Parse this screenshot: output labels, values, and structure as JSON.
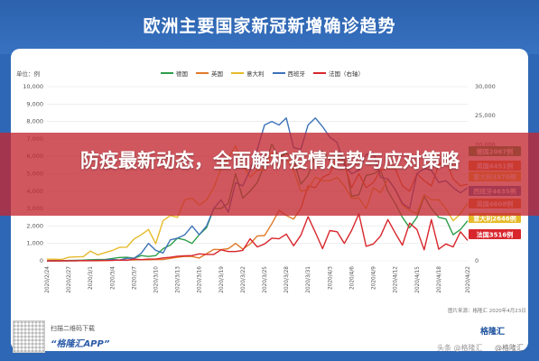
{
  "page_title": "欧洲主要国家新冠新增确诊趋势",
  "banner": "防疫最新动态，全面解析疫情走势与应对策略",
  "legend_note": "单位：例",
  "footer": {
    "app_line1": "扫描二维码下载",
    "app_line2": "“格隆汇APP”",
    "source": "图片来源：格隆汇 2020年4月23日",
    "brand": "格隆汇",
    "watermark_left": "头条 @格隆汇",
    "watermark_right": "@格隆汇"
  },
  "colors": {
    "德国": "#2e9e4a",
    "英国": "#e07a2a",
    "意大利": "#e6bb2a",
    "西班牙": "#3d73b8",
    "法国": "#d8262d"
  },
  "chart_data": {
    "type": "line",
    "title": "",
    "x": [
      "2020/2/24",
      "2020/2/25",
      "2020/2/26",
      "2020/2/27",
      "2020/2/28",
      "2020/2/29",
      "2020/3/1",
      "2020/3/2",
      "2020/3/3",
      "2020/3/4",
      "2020/3/5",
      "2020/3/6",
      "2020/3/7",
      "2020/3/8",
      "2020/3/9",
      "2020/3/10",
      "2020/3/11",
      "2020/3/12",
      "2020/3/13",
      "2020/3/14",
      "2020/3/15",
      "2020/3/16",
      "2020/3/17",
      "2020/3/18",
      "2020/3/19",
      "2020/3/20",
      "2020/3/21",
      "2020/3/22",
      "2020/3/23",
      "2020/3/24",
      "2020/3/25",
      "2020/3/26",
      "2020/3/27",
      "2020/3/28",
      "2020/3/29",
      "2020/3/30",
      "2020/3/31",
      "2020/4/1",
      "2020/4/2",
      "2020/4/3",
      "2020/4/4",
      "2020/4/5",
      "2020/4/6",
      "2020/4/7",
      "2020/4/8",
      "2020/4/9",
      "2020/4/10",
      "2020/4/11",
      "2020/4/12",
      "2020/4/13",
      "2020/4/14",
      "2020/4/15",
      "2020/4/16",
      "2020/4/17",
      "2020/4/18",
      "2020/4/19",
      "2020/4/20",
      "2020/4/21",
      "2020/4/22"
    ],
    "x_tick_labels": [
      "2020/2/24",
      "2020/2/27",
      "2020/3/1",
      "2020/3/4",
      "2020/3/7",
      "2020/3/10",
      "2020/3/13",
      "2020/3/16",
      "2020/3/19",
      "2020/3/22",
      "2020/3/25",
      "2020/3/28",
      "2020/3/31",
      "2020/4/3",
      "2020/4/6",
      "2020/4/9",
      "2020/4/12",
      "2020/4/15",
      "2020/4/18",
      "2020/4/22"
    ],
    "y_left": {
      "ylim": [
        0,
        10000
      ],
      "ticks": [
        "0",
        "1,000",
        "2,000",
        "3,000",
        "4,000",
        "5,000",
        "6,000",
        "7,000",
        "8,000",
        "9,000",
        "10,000"
      ]
    },
    "y_right": {
      "ylim": [
        0,
        30000
      ],
      "ticks": [
        "0",
        "5,000",
        "10,000",
        "15,000",
        "20,000",
        "25,000",
        "30,000"
      ],
      "note": "法国（右轴）"
    },
    "series": [
      {
        "name": "德国",
        "axis": "left",
        "values": [
          0,
          0,
          10,
          20,
          30,
          40,
          60,
          70,
          70,
          130,
          190,
          200,
          150,
          300,
          250,
          300,
          700,
          900,
          1300,
          1200,
          1000,
          1500,
          1900,
          3000,
          3000,
          3300,
          5000,
          3600,
          4000,
          4500,
          5500,
          6700,
          5900,
          6200,
          5800,
          4400,
          4900,
          6200,
          6300,
          5800,
          6100,
          5900,
          3700,
          3800,
          4900,
          5000,
          5200,
          4000,
          3300,
          2500,
          1900,
          2500,
          3700,
          3000,
          2500,
          2400,
          1500,
          1800,
          2300
        ]
      },
      {
        "name": "英国",
        "axis": "left",
        "values": [
          0,
          0,
          0,
          0,
          3,
          5,
          12,
          6,
          12,
          35,
          47,
          47,
          46,
          66,
          60,
          70,
          80,
          140,
          200,
          260,
          250,
          160,
          410,
          660,
          640,
          700,
          1000,
          670,
          970,
          1430,
          1450,
          2130,
          2900,
          2600,
          2400,
          3000,
          4300,
          4200,
          4800,
          5000,
          5900,
          5600,
          4200,
          5000,
          4200,
          4500,
          5200,
          5300,
          5300,
          4300,
          4000,
          5000,
          4600,
          4300,
          5500,
          5800,
          4700,
          4300,
          4400
        ]
      },
      {
        "name": "意大利",
        "axis": "left",
        "values": [
          100,
          90,
          80,
          200,
          230,
          240,
          560,
          340,
          470,
          590,
          770,
          780,
          1250,
          1490,
          1800,
          980,
          2300,
          2600,
          2500,
          3500,
          3600,
          3200,
          3500,
          4200,
          5300,
          5900,
          6600,
          5500,
          4800,
          5200,
          5200,
          6200,
          5900,
          5900,
          5200,
          4000,
          4100,
          4800,
          4600,
          4600,
          4800,
          4300,
          3600,
          3600,
          3000,
          4200,
          3900,
          4700,
          4100,
          3200,
          2900,
          2700,
          3800,
          3500,
          3500,
          3000,
          2300,
          2700,
          3300
        ]
      },
      {
        "name": "西班牙",
        "axis": "left",
        "values": [
          0,
          3,
          4,
          4,
          7,
          20,
          20,
          25,
          49,
          82,
          39,
          144,
          147,
          430,
          1000,
          600,
          450,
          1200,
          1300,
          1500,
          2000,
          1500,
          2000,
          3000,
          3500,
          2800,
          4500,
          4300,
          5200,
          6400,
          7800,
          8000,
          7800,
          8200,
          6500,
          6400,
          7800,
          8200,
          7700,
          7100,
          6800,
          5500,
          5000,
          5200,
          6100,
          6200,
          4800,
          4700,
          4100,
          3300,
          3000,
          5000,
          5300,
          5200,
          4500,
          4600,
          4200,
          3900,
          4200
        ]
      },
      {
        "name": "法国",
        "axis": "right",
        "values": [
          0,
          2,
          4,
          20,
          20,
          40,
          30,
          60,
          60,
          80,
          130,
          100,
          300,
          200,
          290,
          300,
          500,
          600,
          800,
          850,
          900,
          1200,
          1100,
          1100,
          1900,
          1600,
          1600,
          1800,
          3800,
          2400,
          2900,
          3900,
          3800,
          4600,
          2600,
          4400,
          7600,
          4900,
          2100,
          5200,
          5000,
          3000,
          5200,
          8100,
          2500,
          2900,
          4300,
          7100,
          4800,
          2700,
          6500,
          5400,
          1900,
          7100,
          2000,
          2900,
          2400,
          5000,
          3516
        ]
      }
    ],
    "end_labels": [
      "德国2067例",
      "英国4451例",
      "意大利3370例",
      "西班牙4635例",
      "英国4608例",
      "意大利2646例",
      "法国3516例"
    ],
    "grid": true,
    "legend": "top-center"
  }
}
